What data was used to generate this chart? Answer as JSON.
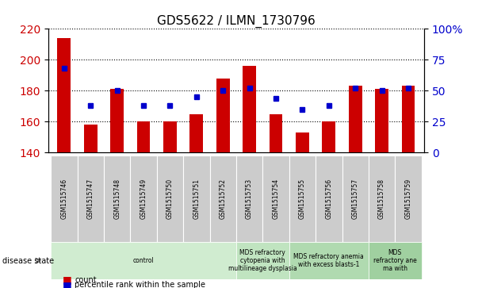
{
  "title": "GDS5622 / ILMN_1730796",
  "samples": [
    "GSM1515746",
    "GSM1515747",
    "GSM1515748",
    "GSM1515749",
    "GSM1515750",
    "GSM1515751",
    "GSM1515752",
    "GSM1515753",
    "GSM1515754",
    "GSM1515755",
    "GSM1515756",
    "GSM1515757",
    "GSM1515758",
    "GSM1515759"
  ],
  "counts": [
    214,
    158,
    181,
    160,
    160,
    165,
    188,
    196,
    165,
    153,
    160,
    183,
    181,
    183
  ],
  "percentile_ranks": [
    68,
    38,
    50,
    38,
    38,
    45,
    50,
    52,
    44,
    35,
    38,
    52,
    50,
    52
  ],
  "ylim_left": [
    140,
    220
  ],
  "ylim_right": [
    0,
    100
  ],
  "yticks_left": [
    140,
    160,
    180,
    200,
    220
  ],
  "yticks_right": [
    0,
    25,
    50,
    75,
    100
  ],
  "bar_color": "#cc0000",
  "dot_color": "#0000cc",
  "bar_width": 0.5,
  "group_defs": [
    {
      "label": "control",
      "start": 0,
      "end": 6,
      "color": "#d0ecd0"
    },
    {
      "label": "MDS refractory\ncytopenia with\nmultilineage dysplasia",
      "start": 7,
      "end": 8,
      "color": "#c0e4c0"
    },
    {
      "label": "MDS refractory anemia\nwith excess blasts-1",
      "start": 9,
      "end": 11,
      "color": "#b0dab0"
    },
    {
      "label": "MDS\nrefractory ane\nma with",
      "start": 12,
      "end": 13,
      "color": "#a0d0a0"
    }
  ],
  "disease_state_label": "disease state",
  "right_axis_color": "#0000cc",
  "left_axis_color": "#cc0000",
  "background_color": "#ffffff",
  "figsize": [
    6.08,
    3.63
  ],
  "dpi": 100
}
